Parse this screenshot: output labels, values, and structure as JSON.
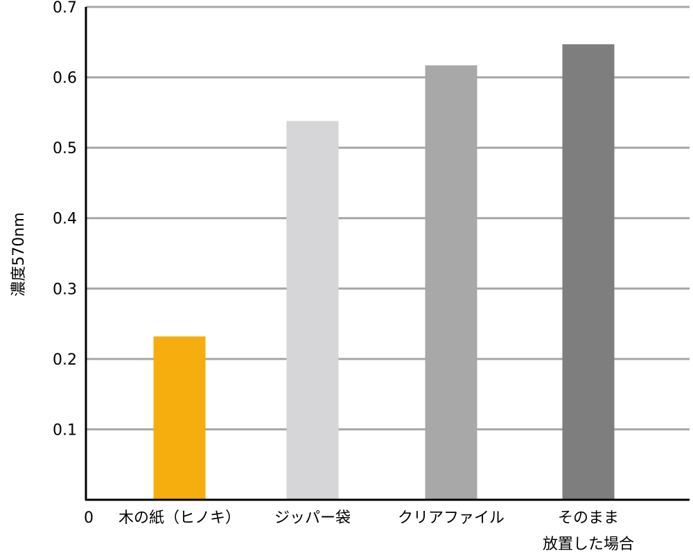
{
  "chart_data": {
    "type": "bar",
    "title": "",
    "xlabel": "",
    "ylabel": "濃度570nm",
    "ylim": [
      0,
      0.7
    ],
    "yticks": [
      "0.1",
      "0.2",
      "0.3",
      "0.4",
      "0.5",
      "0.6",
      "0.7"
    ],
    "origin_label": "0",
    "grid": true,
    "legend": "none",
    "categories": [
      [
        "木の紙（ヒノキ）"
      ],
      [
        "ジッパー袋"
      ],
      [
        "クリアファイル"
      ],
      [
        "そのまま",
        "放置した場合"
      ]
    ],
    "values": [
      0.232,
      0.538,
      0.617,
      0.647
    ],
    "colors": [
      "#f5ae0d",
      "#d6d6d8",
      "#a8a8a8",
      "#7f7e7e"
    ],
    "grid_color": "#a6a6a6",
    "axis_color": "#000000"
  }
}
